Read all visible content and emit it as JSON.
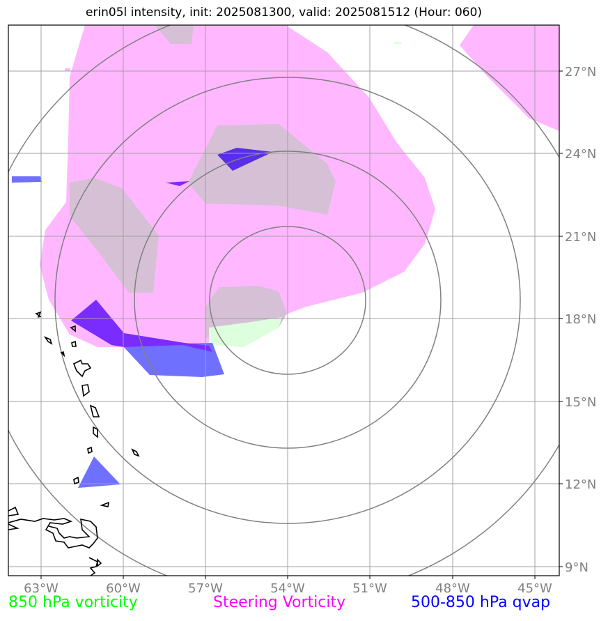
{
  "title": "erin05l intensity, init: 2025081300, valid: 2025081512 (Hour: 060)",
  "lon_ticks": [
    "63°W",
    "60°W",
    "57°W",
    "54°W",
    "51°W",
    "48°W",
    "45°W"
  ],
  "lat_ticks": [
    "27°N",
    "24°N",
    "21°N",
    "18°N",
    "15°N",
    "12°N",
    "9°N"
  ],
  "legend": {
    "vort850": "850 hPa vorticity",
    "steering": "Steering Vorticity",
    "qvap": "500-850 hPa qvap"
  },
  "colors": {
    "steering": "#ffb8ff",
    "qvap": "#7070ff",
    "overlap": "#7a2cff",
    "vort850": "#ddffdd",
    "tan": "#d6c0d6",
    "grid": "#a0a0a0",
    "rings": "#808080"
  }
}
